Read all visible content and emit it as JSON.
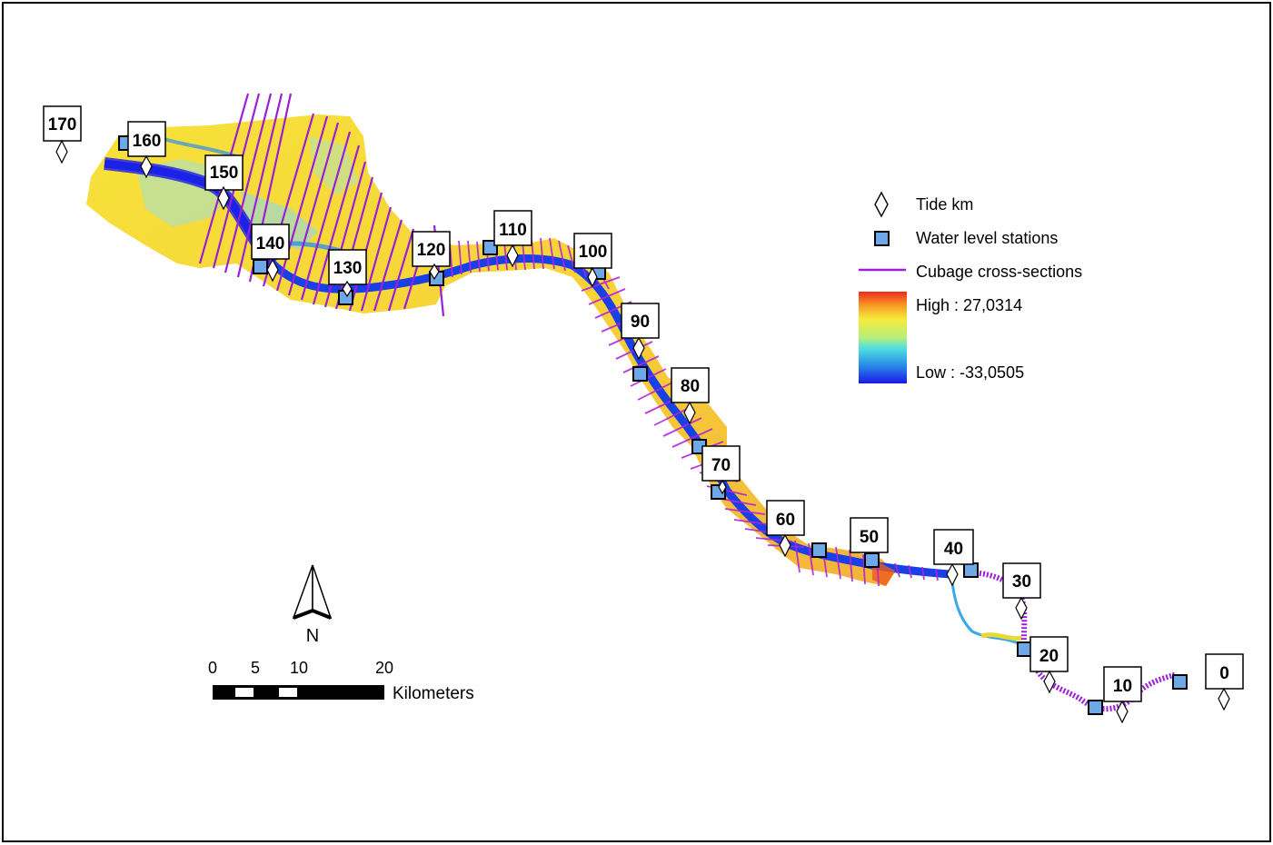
{
  "markers": [
    {
      "km": "170"
    },
    {
      "km": "160"
    },
    {
      "km": "150"
    },
    {
      "km": "140"
    },
    {
      "km": "130"
    },
    {
      "km": "120"
    },
    {
      "km": "110"
    },
    {
      "km": "100"
    },
    {
      "km": "90"
    },
    {
      "km": "80"
    },
    {
      "km": "70"
    },
    {
      "km": "60"
    },
    {
      "km": "50"
    },
    {
      "km": "40"
    },
    {
      "km": "30"
    },
    {
      "km": "20"
    },
    {
      "km": "10"
    },
    {
      "km": "0"
    }
  ],
  "legend": {
    "tide_km": "Tide km",
    "water_level_stations": "Water level stations",
    "cross_sections": "Cubage cross-sections",
    "high": "High : 27,0314",
    "low": "Low : -33,0505"
  },
  "north_arrow": {
    "label": "N"
  },
  "scale_bar": {
    "ticks": [
      "0",
      "5",
      "10",
      "20"
    ],
    "unit": "Kilometers"
  },
  "colors": {
    "station_fill": "#6fa8e8",
    "cross_section": "#9b1fd6",
    "ramp_high": "#e8231e",
    "ramp_mid": "#f5ec3a",
    "ramp_low": "#1a1ae6"
  }
}
